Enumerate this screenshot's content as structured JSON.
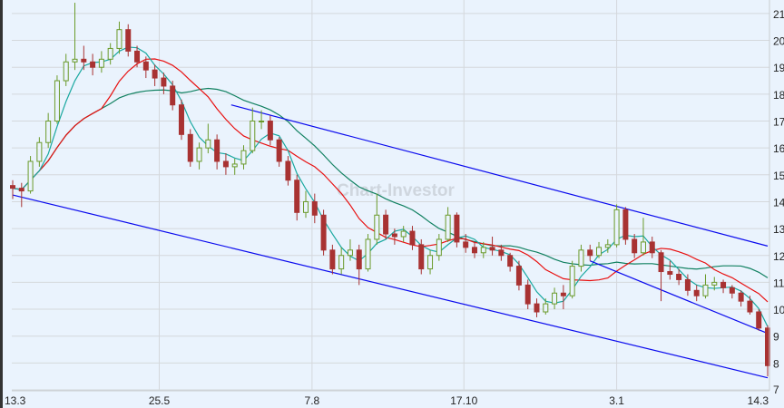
{
  "chart_data": {
    "type": "candlestick",
    "watermark": "Chart-Investor",
    "ylim": [
      7,
      21.5
    ],
    "yticks": [
      7,
      8,
      9,
      10,
      11,
      12,
      13,
      14,
      15,
      16,
      17,
      18,
      19,
      20,
      21
    ],
    "xticks": [
      {
        "label": "13.3",
        "index": 0
      },
      {
        "label": "25.5",
        "index": 16.5
      },
      {
        "label": "7.8",
        "index": 33.7
      },
      {
        "label": "17.10",
        "index": 50.8
      },
      {
        "label": "3.1",
        "index": 68
      },
      {
        "label": "14.3",
        "index": 85
      }
    ],
    "grid": true,
    "colors": {
      "up": "#6a9a2a",
      "down": "#a83232",
      "fast_ma": "#1aa8a0",
      "mid_ma": "#e81010",
      "slow_ma": "#108060",
      "channel": "#0a0aee",
      "background": "#eaf3fd"
    },
    "candles_ohlc": [
      [
        14.6,
        14.8,
        14.1,
        14.5
      ],
      [
        14.5,
        14.7,
        13.8,
        14.4
      ],
      [
        14.4,
        15.7,
        14.3,
        15.5
      ],
      [
        15.5,
        16.4,
        15.3,
        16.2
      ],
      [
        16.2,
        17.3,
        16.0,
        17.0
      ],
      [
        17.0,
        18.7,
        16.9,
        18.5
      ],
      [
        18.5,
        19.5,
        18.3,
        19.2
      ],
      [
        19.2,
        21.4,
        18.9,
        19.3
      ],
      [
        19.3,
        19.8,
        18.9,
        19.2
      ],
      [
        19.2,
        19.5,
        18.7,
        19.0
      ],
      [
        19.0,
        19.6,
        18.8,
        19.3
      ],
      [
        19.3,
        19.9,
        19.1,
        19.7
      ],
      [
        19.7,
        20.7,
        19.5,
        20.4
      ],
      [
        20.4,
        20.6,
        19.4,
        19.6
      ],
      [
        19.6,
        19.8,
        19.0,
        19.2
      ],
      [
        19.2,
        19.4,
        18.6,
        18.9
      ],
      [
        18.9,
        19.1,
        18.3,
        18.6
      ],
      [
        18.6,
        18.8,
        18.0,
        18.3
      ],
      [
        18.3,
        18.5,
        17.4,
        17.6
      ],
      [
        17.6,
        17.8,
        16.3,
        16.5
      ],
      [
        16.5,
        16.7,
        15.3,
        15.5
      ],
      [
        15.5,
        16.2,
        15.2,
        16.0
      ],
      [
        16.0,
        16.9,
        15.8,
        16.3
      ],
      [
        16.3,
        16.5,
        15.2,
        15.5
      ],
      [
        15.5,
        15.8,
        15.0,
        15.3
      ],
      [
        15.3,
        15.6,
        15.0,
        15.4
      ],
      [
        15.4,
        16.1,
        15.2,
        15.9
      ],
      [
        15.9,
        17.5,
        15.8,
        17.0
      ],
      [
        17.0,
        17.4,
        16.7,
        17.0
      ],
      [
        17.0,
        17.2,
        16.1,
        16.3
      ],
      [
        16.3,
        16.4,
        15.3,
        15.5
      ],
      [
        15.5,
        15.7,
        14.6,
        14.8
      ],
      [
        14.8,
        15.0,
        13.3,
        13.6
      ],
      [
        13.6,
        14.4,
        13.4,
        14.0
      ],
      [
        14.0,
        14.3,
        13.2,
        13.5
      ],
      [
        13.5,
        13.7,
        12.0,
        12.2
      ],
      [
        12.2,
        12.4,
        11.3,
        11.5
      ],
      [
        11.5,
        12.3,
        11.3,
        12.0
      ],
      [
        12.0,
        12.6,
        11.8,
        12.2
      ],
      [
        12.2,
        12.4,
        10.9,
        11.5
      ],
      [
        11.5,
        12.8,
        11.4,
        12.6
      ],
      [
        12.6,
        14.3,
        12.4,
        13.5
      ],
      [
        13.5,
        13.7,
        12.6,
        12.8
      ],
      [
        12.8,
        13.0,
        12.4,
        12.7
      ],
      [
        12.7,
        13.1,
        12.5,
        12.9
      ],
      [
        12.9,
        13.1,
        12.2,
        12.4
      ],
      [
        12.4,
        12.6,
        11.3,
        11.5
      ],
      [
        11.5,
        12.2,
        11.3,
        12.0
      ],
      [
        12.0,
        12.8,
        11.8,
        12.6
      ],
      [
        12.6,
        13.8,
        12.5,
        13.5
      ],
      [
        13.5,
        13.6,
        12.3,
        12.5
      ],
      [
        12.5,
        12.8,
        12.1,
        12.3
      ],
      [
        12.3,
        12.5,
        11.9,
        12.1
      ],
      [
        12.1,
        12.5,
        11.9,
        12.3
      ],
      [
        12.3,
        12.7,
        12.0,
        12.2
      ],
      [
        12.2,
        12.4,
        11.8,
        12.0
      ],
      [
        12.0,
        12.1,
        11.4,
        11.6
      ],
      [
        11.6,
        11.8,
        10.7,
        10.9
      ],
      [
        10.9,
        11.1,
        10.0,
        10.2
      ],
      [
        10.2,
        10.4,
        9.7,
        9.9
      ],
      [
        9.9,
        10.4,
        9.8,
        10.2
      ],
      [
        10.2,
        10.8,
        10.0,
        10.6
      ],
      [
        10.6,
        10.9,
        10.0,
        10.5
      ],
      [
        10.5,
        11.8,
        10.4,
        11.6
      ],
      [
        11.6,
        12.4,
        11.4,
        12.2
      ],
      [
        12.2,
        12.4,
        11.8,
        12.0
      ],
      [
        12.0,
        12.5,
        11.9,
        12.3
      ],
      [
        12.3,
        12.6,
        12.1,
        12.4
      ],
      [
        12.4,
        13.9,
        12.3,
        13.7
      ],
      [
        13.7,
        13.8,
        12.4,
        12.6
      ],
      [
        12.6,
        12.8,
        11.9,
        12.1
      ],
      [
        12.1,
        13.4,
        12.0,
        12.5
      ],
      [
        12.5,
        12.7,
        11.9,
        12.1
      ],
      [
        12.1,
        12.2,
        10.3,
        11.4
      ],
      [
        11.4,
        11.8,
        11.1,
        11.3
      ],
      [
        11.3,
        11.5,
        10.9,
        11.1
      ],
      [
        11.1,
        11.3,
        10.5,
        10.7
      ],
      [
        10.7,
        10.9,
        10.3,
        10.5
      ],
      [
        10.5,
        11.3,
        10.4,
        10.9
      ],
      [
        10.9,
        11.2,
        10.7,
        11.0
      ],
      [
        11.0,
        11.1,
        10.6,
        10.8
      ],
      [
        10.8,
        10.9,
        10.4,
        10.6
      ],
      [
        10.6,
        10.7,
        10.1,
        10.3
      ],
      [
        10.3,
        10.5,
        9.8,
        9.9
      ],
      [
        9.9,
        10.0,
        9.2,
        9.3
      ],
      [
        9.3,
        9.4,
        7.5,
        7.9
      ]
    ],
    "trend_channel": [
      {
        "from": [
          24.6,
          17.6
        ],
        "to": [
          85,
          12.35
        ]
      },
      {
        "from": [
          0,
          14.25
        ],
        "to": [
          85,
          7.45
        ]
      },
      {
        "from": [
          65,
          11.8
        ],
        "to": [
          85,
          9.1
        ]
      }
    ]
  }
}
